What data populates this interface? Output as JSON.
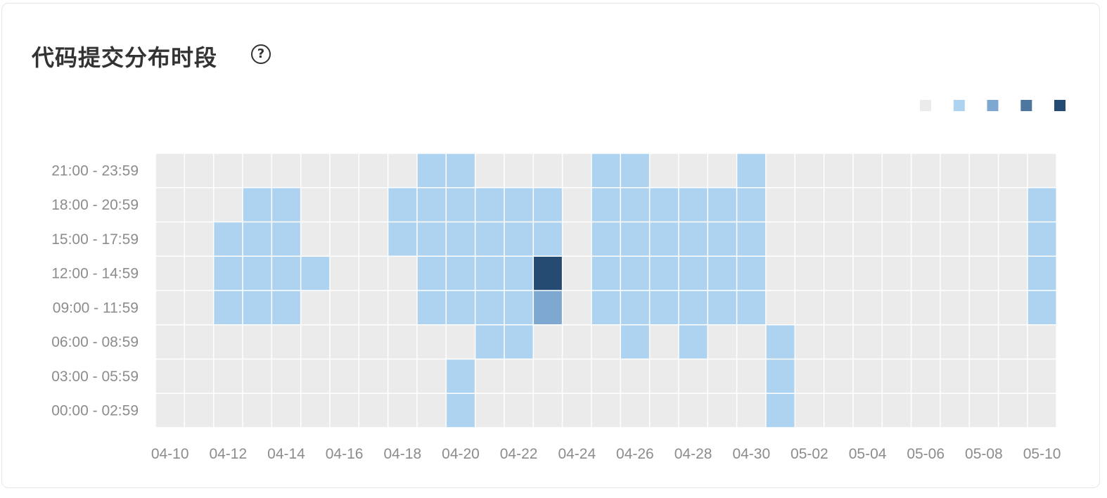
{
  "card": {
    "title": "代码提交分布时段",
    "help_icon": "question-circle-icon",
    "help_glyph": "?"
  },
  "chart_data": {
    "type": "heatmap",
    "title": "代码提交分布时段",
    "x_labels": [
      "04-10",
      "04-11",
      "04-12",
      "04-13",
      "04-14",
      "04-15",
      "04-16",
      "04-17",
      "04-18",
      "04-19",
      "04-20",
      "04-21",
      "04-22",
      "04-23",
      "04-24",
      "04-25",
      "04-26",
      "04-27",
      "04-28",
      "04-29",
      "04-30",
      "05-01",
      "05-02",
      "05-03",
      "05-04",
      "05-05",
      "05-06",
      "05-07",
      "05-08",
      "05-09",
      "05-10"
    ],
    "x_tick_labels": [
      "04-10",
      "04-12",
      "04-14",
      "04-16",
      "04-18",
      "04-20",
      "04-22",
      "04-24",
      "04-26",
      "04-28",
      "04-30",
      "05-02",
      "05-04",
      "05-06",
      "05-08",
      "05-10"
    ],
    "y_labels": [
      "21:00 - 23:59",
      "18:00 - 20:59",
      "15:00 - 17:59",
      "12:00 - 14:59",
      "09:00 - 11:59",
      "06:00 - 08:59",
      "03:00 - 05:59",
      "00:00 - 02:59"
    ],
    "levels": [
      [
        0,
        0,
        0,
        0,
        0,
        0,
        0,
        0,
        0,
        1,
        1,
        0,
        0,
        0,
        0,
        1,
        1,
        0,
        0,
        0,
        1,
        0,
        0,
        0,
        0,
        0,
        0,
        0,
        0,
        0,
        0
      ],
      [
        0,
        0,
        0,
        1,
        1,
        0,
        0,
        0,
        1,
        1,
        1,
        1,
        1,
        1,
        0,
        1,
        1,
        1,
        1,
        1,
        1,
        0,
        0,
        0,
        0,
        0,
        0,
        0,
        0,
        0,
        1
      ],
      [
        0,
        0,
        1,
        1,
        1,
        0,
        0,
        0,
        1,
        1,
        1,
        1,
        1,
        1,
        0,
        1,
        1,
        1,
        1,
        1,
        1,
        0,
        0,
        0,
        0,
        0,
        0,
        0,
        0,
        0,
        1
      ],
      [
        0,
        0,
        1,
        1,
        1,
        1,
        0,
        0,
        0,
        1,
        1,
        1,
        1,
        4,
        0,
        1,
        1,
        1,
        1,
        1,
        1,
        0,
        0,
        0,
        0,
        0,
        0,
        0,
        0,
        0,
        1
      ],
      [
        0,
        0,
        1,
        1,
        1,
        0,
        0,
        0,
        0,
        1,
        1,
        1,
        1,
        2,
        0,
        1,
        1,
        1,
        1,
        1,
        1,
        0,
        0,
        0,
        0,
        0,
        0,
        0,
        0,
        0,
        1
      ],
      [
        0,
        0,
        0,
        0,
        0,
        0,
        0,
        0,
        0,
        0,
        0,
        1,
        1,
        0,
        0,
        0,
        1,
        0,
        1,
        0,
        0,
        1,
        0,
        0,
        0,
        0,
        0,
        0,
        0,
        0,
        0
      ],
      [
        0,
        0,
        0,
        0,
        0,
        0,
        0,
        0,
        0,
        0,
        1,
        0,
        0,
        0,
        0,
        0,
        0,
        0,
        0,
        0,
        0,
        1,
        0,
        0,
        0,
        0,
        0,
        0,
        0,
        0,
        0
      ],
      [
        0,
        0,
        0,
        0,
        0,
        0,
        0,
        0,
        0,
        0,
        1,
        0,
        0,
        0,
        0,
        0,
        0,
        0,
        0,
        0,
        0,
        1,
        0,
        0,
        0,
        0,
        0,
        0,
        0,
        0,
        0
      ]
    ],
    "legend": {
      "placement": "top-right",
      "colors": [
        "#ebebeb",
        "#aed3f0",
        "#7fa8d0",
        "#4e77a0",
        "#264b72"
      ]
    },
    "grid": true
  }
}
